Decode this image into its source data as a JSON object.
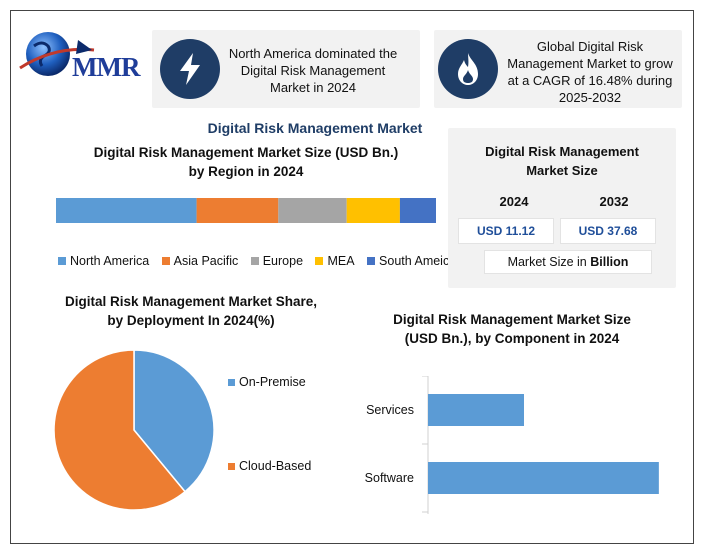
{
  "brand": {
    "logo_text": "MMR"
  },
  "highlights": [
    {
      "icon": "lightning-icon",
      "text_lines": [
        "North America dominated the",
        "Digital Risk Management",
        "Market in 2024"
      ]
    },
    {
      "icon": "flame-icon",
      "text_lines": [
        "Global Digital Risk",
        "Management Market to grow",
        "at a CAGR of 16.48% during",
        "2025-2032"
      ]
    }
  ],
  "header": {
    "title": "Digital Risk Management Market"
  },
  "colors": {
    "navy": "#1f3d66",
    "blue": "#5b9bd5",
    "orange": "#ed7d31",
    "gray": "#a5a5a5",
    "yellow": "#ffc000",
    "dark_blue": "#4472c4"
  },
  "market_size": {
    "title_lines": [
      "Digital Risk Management",
      "Market Size"
    ],
    "years": [
      "2024",
      "2032"
    ],
    "values": [
      "USD 11.12",
      "USD 37.68"
    ],
    "footer_prefix": "Market Size in ",
    "footer_unit": "Billion"
  },
  "chart_data": [
    {
      "type": "bar",
      "orientation": "stacked-horizontal",
      "title_lines": [
        "Digital Risk Management Market Size (USD Bn.)",
        "by Region in 2024"
      ],
      "series": [
        {
          "name": "North America",
          "value": 37,
          "color": "#5b9bd5"
        },
        {
          "name": "Asia Pacific",
          "value": 21.5,
          "color": "#ed7d31"
        },
        {
          "name": "Europe",
          "value": 18,
          "color": "#a5a5a5"
        },
        {
          "name": "MEA",
          "value": 14,
          "color": "#ffc000"
        },
        {
          "name": "South Ameica",
          "value": 9.5,
          "color": "#4472c4"
        }
      ],
      "legend": "bottom"
    },
    {
      "type": "pie",
      "title_lines": [
        "Digital Risk Management Market Share,",
        "by Deployment In 2024(%)"
      ],
      "slices": [
        {
          "name": "On-Premise",
          "value": 39,
          "color": "#5b9bd5"
        },
        {
          "name": "Cloud-Based",
          "value": 61,
          "color": "#ed7d31"
        }
      ],
      "legend": "right"
    },
    {
      "type": "bar",
      "orientation": "horizontal",
      "title_lines": [
        "Digital Risk Management Market Size",
        "(USD Bn.), by Component in 2024"
      ],
      "categories": [
        "Services",
        "Software"
      ],
      "values": [
        4.2,
        10.1
      ],
      "xlim": [
        0,
        10.5
      ],
      "color": "#5b9bd5"
    }
  ]
}
